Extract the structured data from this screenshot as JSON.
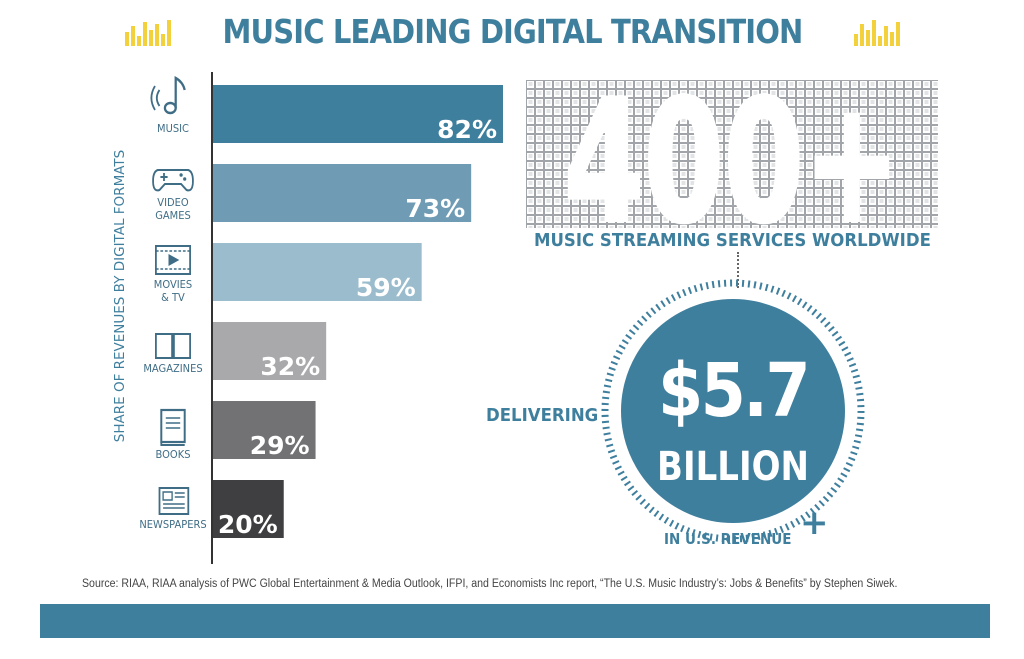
{
  "header": {
    "title": "MUSIC LEADING DIGITAL TRANSITION"
  },
  "chart_data": {
    "type": "bar",
    "orientation": "horizontal",
    "ylabel": "SHARE OF REVENUES BY DIGITAL FORMATS",
    "categories": [
      "MUSIC",
      "VIDEO\nGAMES",
      "MOVIES\n& TV",
      "MAGAZINES",
      "BOOKS",
      "NEWSPAPERS"
    ],
    "values": [
      82,
      73,
      59,
      32,
      29,
      20
    ],
    "value_labels": [
      "82%",
      "73%",
      "59%",
      "32%",
      "29%",
      "20%"
    ],
    "bar_colors": [
      "#3f7f9e",
      "#6f9cb4",
      "#9abccd",
      "#a9a9ab",
      "#727274",
      "#3f3f41"
    ],
    "xlim": [
      0,
      100
    ]
  },
  "category_icons": [
    "music-note-icon",
    "game-controller-icon",
    "film-icon",
    "magazine-icon",
    "book-icon",
    "newspaper-icon"
  ],
  "stats": {
    "services_number": "400+",
    "services_label": "MUSIC STREAMING SERVICES WORLDWIDE",
    "delivering_label": "DELIVERING",
    "revenue_amount": "$5.7",
    "revenue_unit": "BILLION",
    "revenue_plus": "+",
    "revenue_label": "IN U.S. REVENUE"
  },
  "source": "Source: RIAA, RIAA analysis of PWC Global Entertainment & Media Outlook, IFPI, and Economists Inc report, “The U.S. Music Industry’s: Jobs & Benefits” by Stephen Siwek.",
  "colors": {
    "accent": "#3f7f9e",
    "yellow": "#f3d13d"
  }
}
